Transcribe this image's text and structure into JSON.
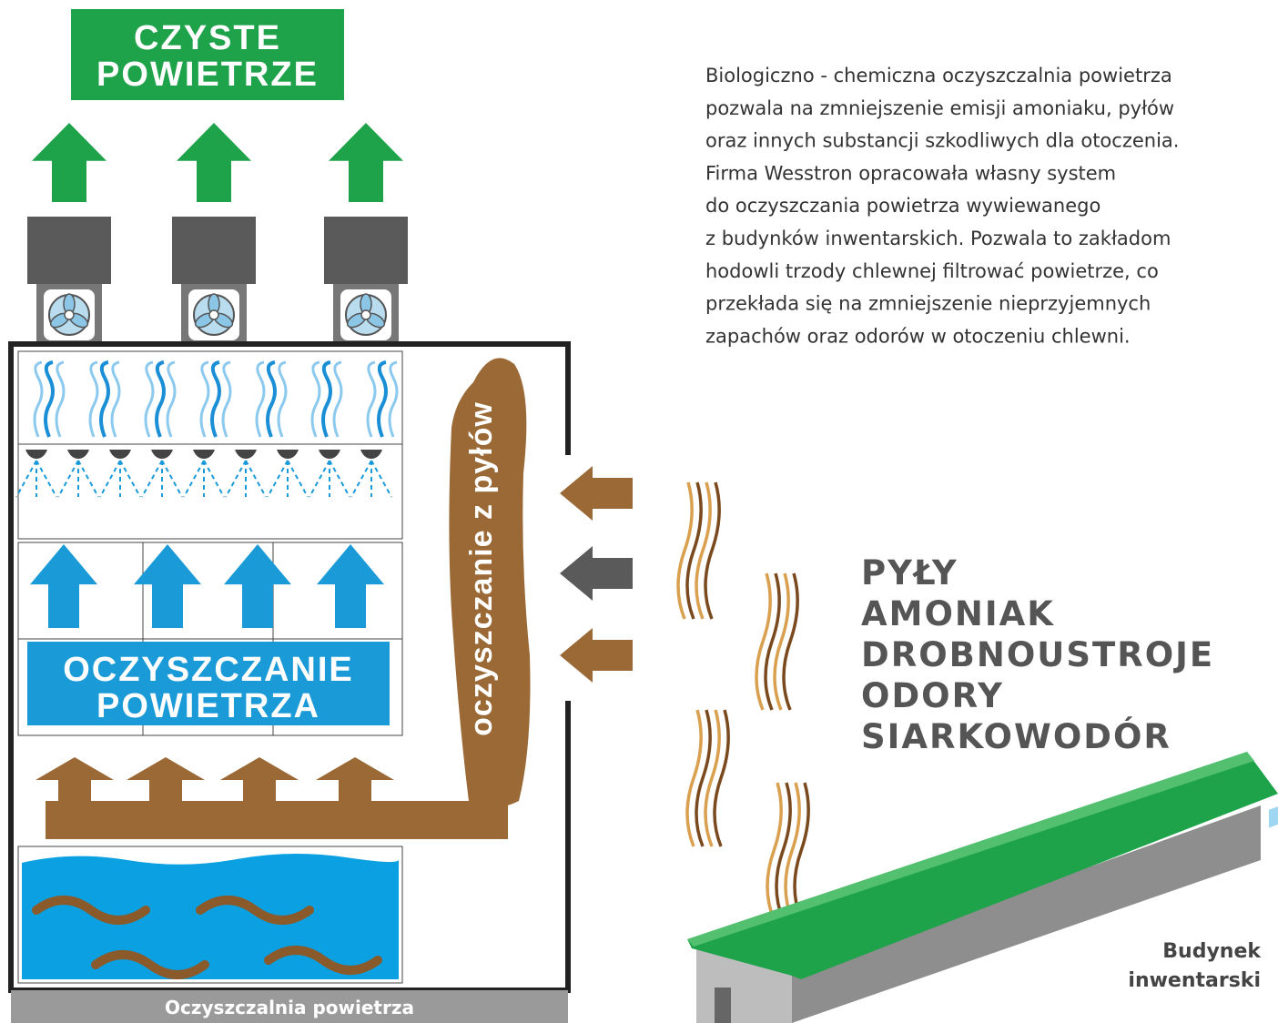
{
  "clean_air_label": [
    "CZYSTE",
    "POWIETRZE"
  ],
  "description": [
    "Biologiczno - chemiczna oczyszczalnia powietrza",
    "pozwala na zmniejszenie emisji amoniaku, pyłów",
    "oraz innych substancji szkodliwych dla otoczenia.",
    "Firma Wesstron opracowała własny system",
    "do oczyszczania powietrza wywiewanego",
    "z budynków inwentarskich. Pozwala to zakładom",
    "hodowli trzody chlewnej filtrować powietrze, co",
    "przekłada się na zmniejszenie nieprzyjemnych",
    "zapachów oraz odorów w otoczeniu chlewni."
  ],
  "purification_label": [
    "OCZYSZCZANIE",
    "POWIETRZA"
  ],
  "dust_cleaning_label": "oczyszczanie z pyłów",
  "pollutants": [
    "PYŁY",
    "AMONIAK",
    "DROBNOUSTROJE",
    "ODORY",
    "SIARKOWODÓR"
  ],
  "building_label": [
    "Budynek",
    "inwentarski"
  ],
  "plant_label": "Oczyszczalnia powietrza"
}
